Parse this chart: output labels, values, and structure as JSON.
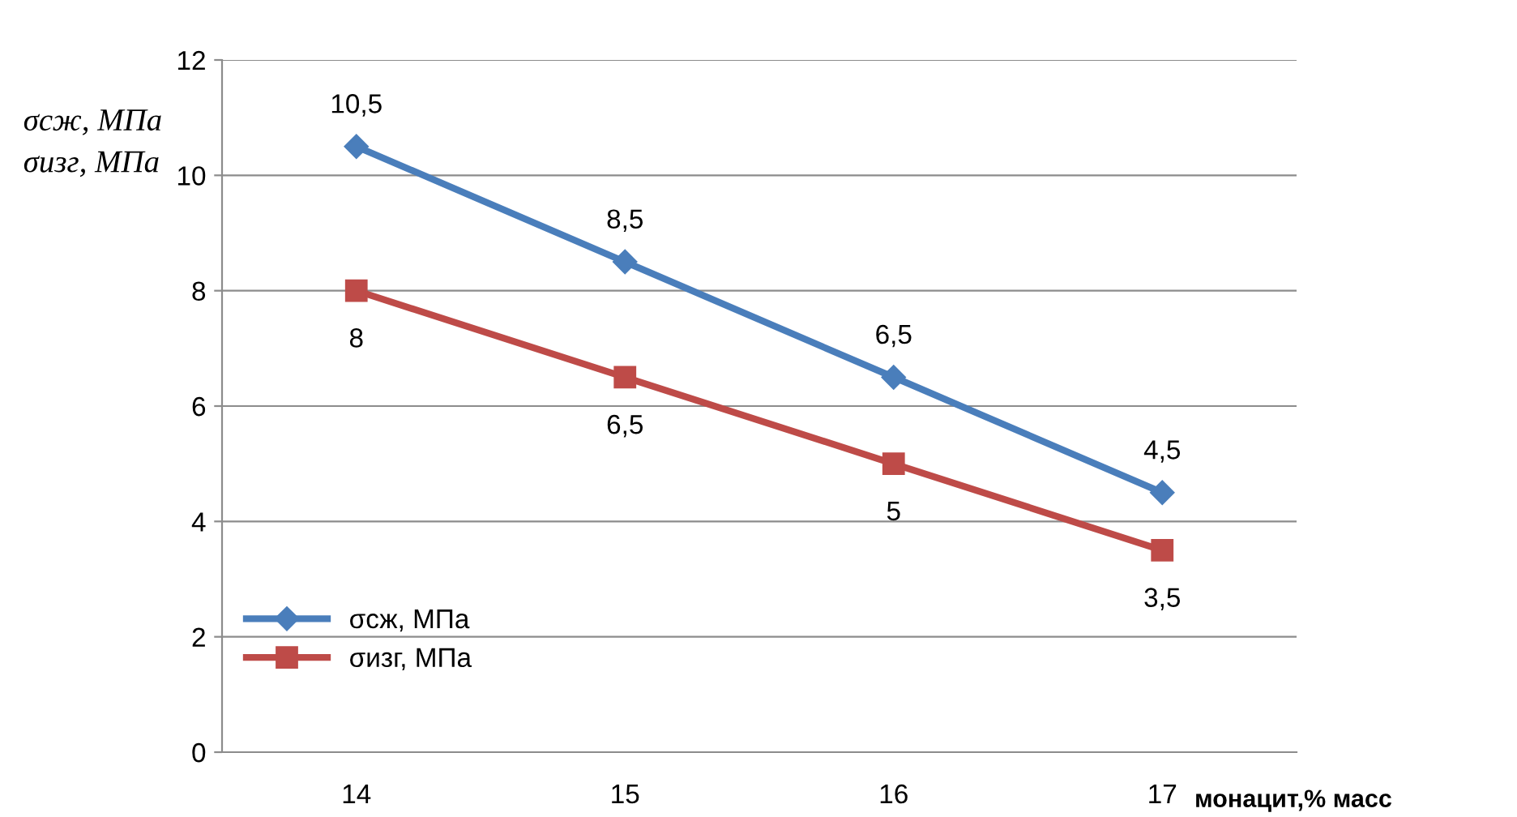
{
  "chart_data": {
    "type": "line",
    "ylabel": "σсж, МПа\nσизг, МПа",
    "xlabel": "монацит,% масс",
    "categories": [
      "14",
      "15",
      "16",
      "17"
    ],
    "series": [
      {
        "name": "σсж, МПа",
        "color": "#4a7ebb",
        "marker": "diamond",
        "values": [
          10.5,
          8.5,
          6.5,
          4.5
        ],
        "value_labels": [
          "10,5",
          "8,5",
          "6,5",
          "4,5"
        ]
      },
      {
        "name": "σизг, МПа",
        "color": "#be4b48",
        "marker": "square",
        "values": [
          8,
          6.5,
          5,
          3.5
        ],
        "value_labels": [
          "8",
          "6,5",
          "5",
          "3,5"
        ]
      }
    ],
    "ylim": [
      0,
      12
    ],
    "yticks": [
      0,
      2,
      4,
      6,
      8,
      10,
      12
    ],
    "grid": "y",
    "legend": "bottom left",
    "line_style": "solid"
  }
}
